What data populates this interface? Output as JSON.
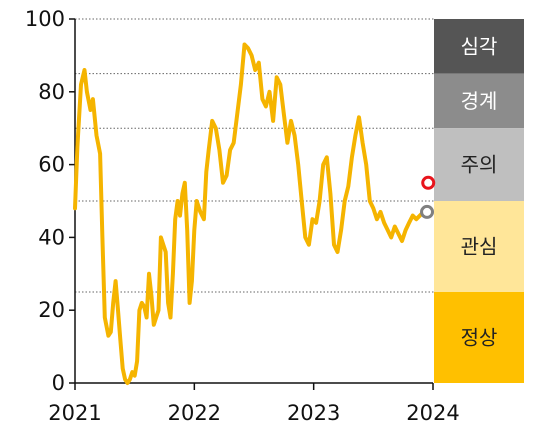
{
  "chart_data": {
    "type": "line",
    "title": "",
    "xlabel": "",
    "ylabel": "",
    "xlim": [
      2021,
      2024
    ],
    "ylim": [
      0,
      100
    ],
    "x_ticks": [
      "2021",
      "2022",
      "2023",
      "2024"
    ],
    "y_ticks": [
      "0",
      "20",
      "40",
      "60",
      "80",
      "100"
    ],
    "grid": "dotted horizontal lines at band thresholds",
    "thresholds": [
      25,
      50,
      70,
      85,
      100
    ],
    "line_color": "#F5B400",
    "series": [
      {
        "x": [
          2021.0,
          2021.02,
          2021.05,
          2021.08,
          2021.1,
          2021.13,
          2021.15,
          2021.18,
          2021.21,
          2021.23,
          2021.25,
          2021.28,
          2021.3,
          2021.32,
          2021.34,
          2021.36,
          2021.38,
          2021.4,
          2021.42,
          2021.44,
          2021.46,
          2021.48,
          2021.5,
          2021.52,
          2021.54,
          2021.56,
          2021.58,
          2021.6,
          2021.62,
          2021.64,
          2021.66,
          2021.68,
          2021.7,
          2021.72,
          2021.74,
          2021.76,
          2021.78,
          2021.8,
          2021.82,
          2021.84,
          2021.86,
          2021.88,
          2021.9,
          2021.92,
          2021.94,
          2021.96,
          2021.98,
          2022.0,
          2022.02,
          2022.05,
          2022.08,
          2022.1,
          2022.12,
          2022.15,
          2022.18,
          2022.21,
          2022.24,
          2022.27,
          2022.3,
          2022.33,
          2022.36,
          2022.39,
          2022.42,
          2022.45,
          2022.48,
          2022.51,
          2022.54,
          2022.57,
          2022.6,
          2022.63,
          2022.66,
          2022.69,
          2022.72,
          2022.75,
          2022.78,
          2022.81,
          2022.84,
          2022.87,
          2022.9,
          2022.93,
          2022.96,
          2022.99,
          2023.02,
          2023.05,
          2023.08,
          2023.11,
          2023.14,
          2023.17,
          2023.2,
          2023.23,
          2023.26,
          2023.29,
          2023.32,
          2023.35,
          2023.38,
          2023.41,
          2023.44,
          2023.47,
          2023.5,
          2023.53,
          2023.56,
          2023.59,
          2023.62,
          2023.65,
          2023.68,
          2023.71,
          2023.74,
          2023.77,
          2023.8,
          2023.83,
          2023.86,
          2023.89,
          2023.92,
          2023.95
        ],
        "values": [
          48,
          65,
          82,
          86,
          80,
          75,
          78,
          68,
          63,
          40,
          18,
          13,
          14,
          22,
          28,
          20,
          12,
          4,
          1,
          0,
          1,
          3,
          2,
          6,
          20,
          22,
          21,
          18,
          30,
          24,
          16,
          18,
          20,
          40,
          38,
          36,
          22,
          18,
          30,
          45,
          50,
          46,
          52,
          55,
          42,
          22,
          28,
          42,
          50,
          47,
          45,
          58,
          64,
          72,
          70,
          64,
          55,
          57,
          64,
          66,
          74,
          82,
          93,
          92,
          90,
          86,
          88,
          78,
          76,
          80,
          72,
          84,
          82,
          74,
          66,
          72,
          68,
          60,
          50,
          40,
          38,
          45,
          44,
          50,
          60,
          62,
          52,
          38,
          36,
          42,
          50,
          54,
          62,
          68,
          73,
          66,
          60,
          50,
          48,
          45,
          47,
          44,
          42,
          40,
          43,
          41,
          39,
          42,
          44,
          46,
          45,
          46,
          47,
          48
        ]
      }
    ],
    "markers": [
      {
        "x": 2023.96,
        "y": 55,
        "color": "#E8141C"
      },
      {
        "x": 2023.95,
        "y": 47,
        "color": "#808080"
      }
    ],
    "bands": [
      {
        "label": "심각",
        "from": 85,
        "to": 100,
        "color": "#555555",
        "text_color": "#ffffff"
      },
      {
        "label": "경계",
        "from": 70,
        "to": 85,
        "color": "#8C8C8C",
        "text_color": "#ffffff"
      },
      {
        "label": "주의",
        "from": 50,
        "to": 70,
        "color": "#BFBFBF",
        "text_color": "#222222"
      },
      {
        "label": "관심",
        "from": 25,
        "to": 50,
        "color": "#FFE699",
        "text_color": "#222222"
      },
      {
        "label": "정상",
        "from": 0,
        "to": 25,
        "color": "#FFC000",
        "text_color": "#222222"
      }
    ]
  }
}
